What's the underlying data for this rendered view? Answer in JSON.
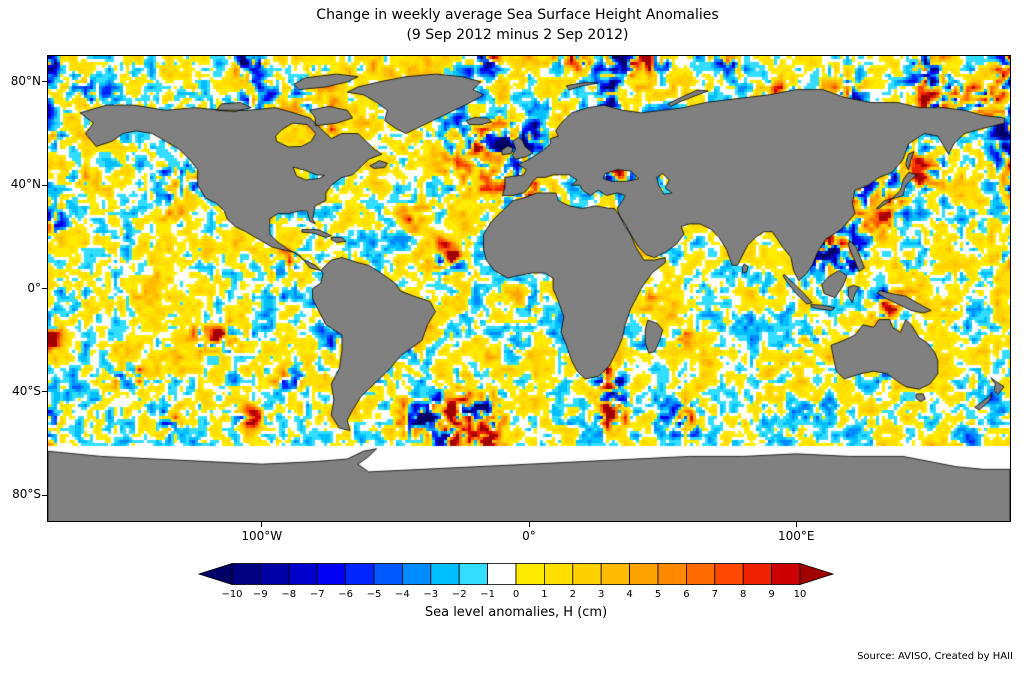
{
  "title": {
    "line1": "Change in weekly average Sea Surface Height Anomalies",
    "line2": "(9 Sep 2012 minus 2 Sep 2012)"
  },
  "source_credit": "Source: AVISO, Created by HAII",
  "map": {
    "land_color": "#808080",
    "coast_color": "#000000",
    "ocean_background": "#ffffff",
    "lat_ticks": [
      {
        "label": "80°N",
        "lat": 80
      },
      {
        "label": "40°N",
        "lat": 40
      },
      {
        "label": "0°",
        "lat": 0
      },
      {
        "label": "40°S",
        "lat": -40
      },
      {
        "label": "80°S",
        "lat": -80
      }
    ],
    "lon_ticks": [
      {
        "label": "100°W",
        "lon": -100
      },
      {
        "label": "0°",
        "lon": 0
      },
      {
        "label": "100°E",
        "lon": 100
      }
    ]
  },
  "colorbar": {
    "label": "Sea level anomalies, H (cm)",
    "tick_labels": [
      "−10",
      "−9",
      "−8",
      "−7",
      "−6",
      "−5",
      "−4",
      "−3",
      "−2",
      "−1",
      "0",
      "1",
      "2",
      "3",
      "4",
      "5",
      "6",
      "7",
      "8",
      "9",
      "10"
    ],
    "colors": [
      "#000080",
      "#0000a6",
      "#0000cc",
      "#0000f2",
      "#0026ff",
      "#0059ff",
      "#008cff",
      "#00bfff",
      "#33ddff",
      "#ffffff",
      "#ffec00",
      "#ffdf00",
      "#ffd100",
      "#ffbc00",
      "#ffa300",
      "#ff8a00",
      "#ff6b00",
      "#ff4700",
      "#ee2200",
      "#cc0000"
    ],
    "under_color": "#000066",
    "over_color": "#a00000"
  },
  "chart_data": {
    "type": "heatmap",
    "title": "Change in weekly average Sea Surface Height Anomalies",
    "subtitle": "(9 Sep 2012 minus 2 Sep 2012)",
    "colorbar_label": "Sea level anomalies, H (cm)",
    "units": "cm",
    "value_range": [
      -10,
      10
    ],
    "colorbar_tick_values": [
      -10,
      -9,
      -8,
      -7,
      -6,
      -5,
      -4,
      -3,
      -2,
      -1,
      0,
      1,
      2,
      3,
      4,
      5,
      6,
      7,
      8,
      9,
      10
    ],
    "lat_tick_values": [
      80,
      40,
      0,
      -40,
      -80
    ],
    "lon_tick_values": [
      -100,
      0,
      100
    ],
    "lat_range": [
      -90,
      90
    ],
    "lon_range": [
      -180,
      180
    ],
    "projection": "equirectangular",
    "colormap_bin_colors": [
      "#000080",
      "#0000a6",
      "#0000cc",
      "#0000f2",
      "#0026ff",
      "#0059ff",
      "#008cff",
      "#00bfff",
      "#33ddff",
      "#ffffff",
      "#ffec00",
      "#ffdf00",
      "#ffd100",
      "#ffbc00",
      "#ffa300",
      "#ff8a00",
      "#ff6b00",
      "#ff4700",
      "#ee2200",
      "#cc0000"
    ],
    "under_color": "#000066",
    "over_color": "#a00000",
    "land_color": "#808080",
    "legend_position": "bottom",
    "grid": false
  }
}
